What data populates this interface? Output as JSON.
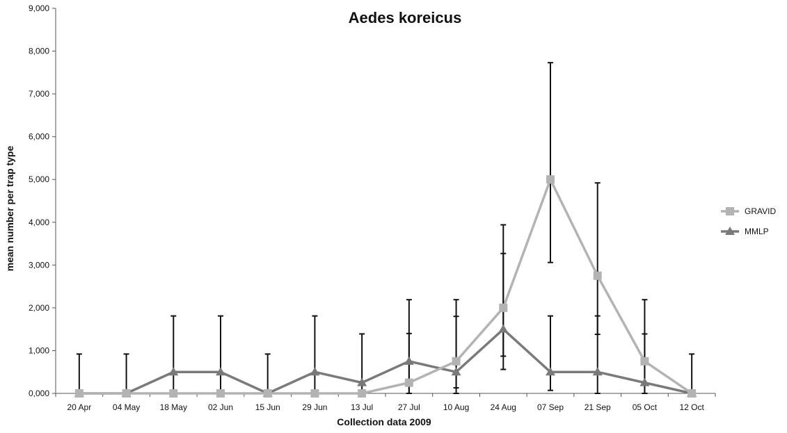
{
  "chart_data": {
    "type": "line",
    "title": "Aedes koreicus",
    "xlabel": "Collection data 2009",
    "ylabel": "mean number per trap type",
    "ylim": [
      0,
      9000
    ],
    "yticks": [
      0,
      1000,
      2000,
      3000,
      4000,
      5000,
      6000,
      7000,
      8000,
      9000
    ],
    "ytick_labels": [
      "0,000",
      "1,000",
      "2,000",
      "3,000",
      "4,000",
      "5,000",
      "6,000",
      "7,000",
      "8,000",
      "9,000"
    ],
    "categories": [
      "20 Apr",
      "04 May",
      "18 May",
      "02 Jun",
      "15 Jun",
      "29 Jun",
      "13 Jul",
      "27 Jul",
      "10 Aug",
      "24 Aug",
      "07 Sep",
      "21 Sep",
      "05 Oct",
      "12 Oct"
    ],
    "legend_position": "right",
    "grid": false,
    "series": [
      {
        "name": "GRAVID",
        "color": "#b3b3b3",
        "marker": "square",
        "values": [
          0,
          0,
          0,
          0,
          0,
          0,
          0,
          250,
          750,
          2000,
          5000,
          2750,
          750,
          0
        ],
        "error_upper": [
          0,
          0,
          0,
          0,
          0,
          0,
          0,
          1400,
          1800,
          3270,
          7730,
          4920,
          2190,
          0
        ],
        "error_lower": [
          0,
          0,
          0,
          0,
          0,
          0,
          0,
          0,
          0,
          870,
          3060,
          1380,
          0,
          0
        ]
      },
      {
        "name": "MMLP",
        "color": "#7a7a7a",
        "marker": "triangle",
        "values": [
          0,
          0,
          500,
          500,
          0,
          500,
          250,
          750,
          500,
          1500,
          500,
          500,
          250,
          0
        ],
        "error_upper": [
          920,
          920,
          1810,
          1810,
          920,
          1810,
          1390,
          2190,
          2190,
          3940,
          1810,
          1810,
          1390,
          920
        ],
        "error_lower": [
          0,
          0,
          0,
          0,
          0,
          0,
          0,
          0,
          130,
          560,
          70,
          0,
          0,
          0
        ]
      }
    ]
  }
}
